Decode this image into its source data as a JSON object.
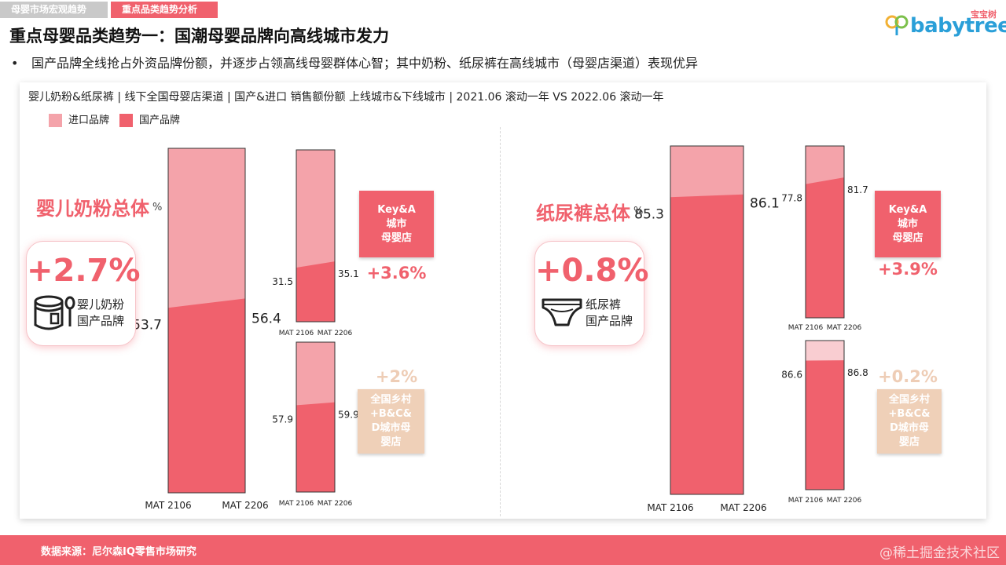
{
  "tabs": [
    "母婴市场宏观趋势",
    "重点品类趋势分析"
  ],
  "logo": {
    "cn": "宝宝树",
    "en": "babytree"
  },
  "title": "重点母婴品类趋势一：国潮母婴品牌向高线城市发力",
  "bullet": "国产品牌全线抢占外资品牌份额，并逐步占领高线母婴群体心智；其中奶粉、纸尿裤在高线城市（母婴店渠道）表现优异",
  "subtitle": "婴儿奶粉&纸尿裤 | 线下全国母婴店渠道 | 国产&进口 销售额份额 上线城市&下线城市 | 2021.06 滚动一年 VS 2022.06 滚动一年",
  "legend": [
    "进口品牌",
    "国产品牌"
  ],
  "colors": {
    "import": "#f4a3aa",
    "domestic": "#f0616d",
    "import_light": "#f9cdd1",
    "accent": "#f0616d",
    "beige": "#efd0b8"
  },
  "left": {
    "title": "婴儿奶粉总体",
    "unit": "%",
    "summary_value": "+2.7%",
    "summary_label": [
      "婴儿奶粉",
      "国产品牌"
    ],
    "summary_icon": "milk-can-icon",
    "tag_top": [
      "Key&A",
      "城市",
      "母婴店"
    ],
    "delta_top": "+3.6%",
    "tag_bottom": [
      "全国乡村",
      "+B&C&",
      "D城市母",
      "婴店"
    ],
    "delta_bottom": "+2%"
  },
  "right": {
    "title": "纸尿裤总体",
    "unit": "%",
    "summary_value": "+0.8%",
    "summary_label": [
      "纸尿裤",
      "国产品牌"
    ],
    "summary_icon": "diaper-icon",
    "tag_top": [
      "Key&A",
      "城市",
      "母婴店"
    ],
    "delta_top": "+3.9%",
    "tag_bottom": [
      "全国乡村",
      "+B&C&",
      "D城市母",
      "婴店"
    ],
    "delta_bottom": "+0.2%"
  },
  "chart_data": [
    {
      "type": "bar",
      "name": "婴儿奶粉总体",
      "categories": [
        "MAT 2106",
        "MAT 2206"
      ],
      "series": [
        {
          "name": "国产品牌",
          "values": [
            53.7,
            56.4
          ]
        },
        {
          "name": "进口品牌",
          "values": [
            46.3,
            43.6
          ]
        }
      ],
      "labels": [
        "53.7",
        "56.4"
      ],
      "stacked": true,
      "ylim": [
        0,
        100
      ]
    },
    {
      "type": "bar",
      "name": "Key&A城市母婴店",
      "categories": [
        "MAT 2106",
        "MAT 2206"
      ],
      "series": [
        {
          "name": "国产品牌",
          "values": [
            31.5,
            35.1
          ]
        },
        {
          "name": "进口品牌",
          "values": [
            68.5,
            64.9
          ]
        }
      ],
      "labels": [
        "31.5",
        "35.1"
      ],
      "stacked": true,
      "ylim": [
        0,
        100
      ]
    },
    {
      "type": "bar",
      "name": "全国乡村+B&C&D城市母婴店",
      "categories": [
        "MAT 2106",
        "MAT 2206"
      ],
      "series": [
        {
          "name": "国产品牌",
          "values": [
            57.9,
            59.9
          ]
        },
        {
          "name": "进口品牌",
          "values": [
            42.1,
            40.1
          ]
        }
      ],
      "labels": [
        "57.9",
        "59.9"
      ],
      "stacked": true,
      "ylim": [
        0,
        100
      ]
    },
    {
      "type": "bar",
      "name": "纸尿裤总体",
      "categories": [
        "MAT 2106",
        "MAT 2206"
      ],
      "series": [
        {
          "name": "国产品牌",
          "values": [
            85.3,
            86.1
          ]
        },
        {
          "name": "进口品牌",
          "values": [
            14.7,
            13.9
          ]
        }
      ],
      "labels": [
        "85.3",
        "86.1"
      ],
      "stacked": true,
      "ylim": [
        0,
        100
      ]
    },
    {
      "type": "bar",
      "name": "纸尿裤 Key&A城市母婴店",
      "categories": [
        "MAT 2106",
        "MAT 2206"
      ],
      "series": [
        {
          "name": "国产品牌",
          "values": [
            77.8,
            81.7
          ]
        },
        {
          "name": "进口品牌",
          "values": [
            22.2,
            18.3
          ]
        }
      ],
      "labels": [
        "77.8",
        "81.7"
      ],
      "stacked": true,
      "ylim": [
        0,
        100
      ]
    },
    {
      "type": "bar",
      "name": "纸尿裤 全国乡村+B&C&D城市母婴店",
      "categories": [
        "MAT 2106",
        "MAT 2206"
      ],
      "series": [
        {
          "name": "国产品牌",
          "values": [
            86.6,
            86.8
          ]
        },
        {
          "name": "进口品牌",
          "values": [
            13.4,
            13.2
          ]
        }
      ],
      "labels": [
        "86.6",
        "86.8"
      ],
      "stacked": true,
      "ylim": [
        0,
        100
      ]
    }
  ],
  "footer": {
    "source": "数据来源：尼尔森IQ零售市场研究",
    "watermark": "@稀土掘金技术社区"
  }
}
